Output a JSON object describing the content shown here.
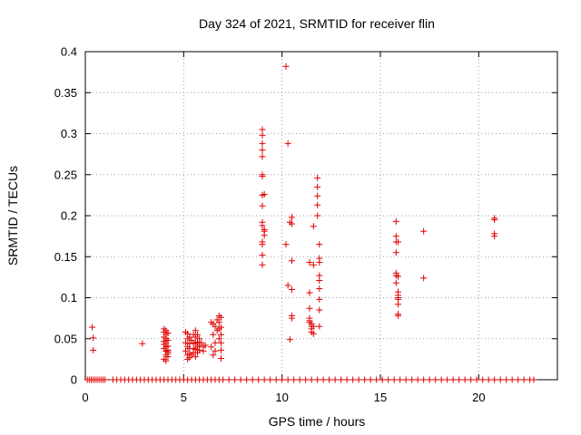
{
  "chart_data": {
    "type": "scatter",
    "title": "Day 324 of 2021, SRMTID for receiver flin",
    "xlabel": "GPS time / hours",
    "ylabel": "SRMTID / TECUs",
    "xlim": [
      0,
      24
    ],
    "ylim": [
      0,
      0.4
    ],
    "xticks": [
      "0",
      "5",
      "10",
      "15",
      "20"
    ],
    "yticks": [
      "0",
      "0.05",
      "0.1",
      "0.15",
      "0.2",
      "0.25",
      "0.3",
      "0.35",
      "0.4"
    ],
    "grid": true,
    "marker": "+",
    "color": "#e00000",
    "series": [
      {
        "x": [
          0.1,
          0.2,
          0.3,
          0.4,
          0.5,
          0.6,
          0.7,
          0.8,
          0.9,
          1.0,
          1.4,
          1.6,
          1.8,
          2.0,
          2.2,
          2.4,
          2.6,
          2.8,
          3.0,
          3.2,
          3.4,
          3.6,
          3.8,
          4.0,
          4.2,
          4.4,
          4.6,
          4.8,
          5.0,
          5.2,
          5.4,
          5.6,
          5.8,
          6.0,
          6.2,
          6.4,
          6.6,
          6.8,
          7.0,
          7.3,
          7.6,
          7.9,
          8.2,
          8.5,
          8.8,
          9.1,
          9.4,
          9.7,
          10.0,
          10.3,
          10.6,
          10.9,
          11.2,
          11.5,
          11.8,
          12.1,
          12.4,
          12.7,
          13.0,
          13.3,
          13.6,
          13.9,
          14.2,
          14.5,
          14.8,
          15.1,
          15.4,
          15.7,
          16.0,
          16.3,
          16.6,
          16.9,
          17.2,
          17.5,
          17.8,
          18.1,
          18.4,
          18.7,
          19.0,
          19.3,
          19.6,
          19.9,
          20.2,
          20.5,
          20.8,
          21.1,
          21.4,
          21.7,
          22.0,
          22.3,
          22.6,
          22.8,
          0.35,
          0.4,
          0.4,
          2.9,
          4.0,
          4.0,
          4.0,
          4.0,
          4.0,
          4.0,
          4.1,
          4.1,
          4.1,
          4.1,
          4.1,
          4.1,
          4.1,
          4.2,
          4.2,
          4.2,
          4.2,
          4.2,
          4.2,
          4.0,
          4.1,
          4.2,
          5.1,
          5.1,
          5.1,
          5.2,
          5.2,
          5.2,
          5.2,
          5.2,
          5.3,
          5.3,
          5.3,
          5.3,
          5.3,
          5.4,
          5.4,
          5.5,
          5.5,
          5.5,
          5.5,
          5.6,
          5.6,
          5.6,
          5.6,
          5.6,
          5.7,
          5.7,
          5.7,
          5.7,
          5.8,
          5.8,
          5.8,
          5.9,
          6.0,
          6.0,
          6.1,
          6.4,
          6.4,
          6.5,
          6.5,
          6.5,
          6.6,
          6.6,
          6.6,
          6.7,
          6.7,
          6.8,
          6.8,
          6.8,
          6.8,
          6.9,
          6.9,
          6.9,
          6.9,
          6.9,
          6.9,
          9.0,
          9.0,
          9.0,
          9.0,
          9.0,
          9.0,
          9.0,
          9.0,
          9.0,
          9.0,
          9.1,
          9.1,
          9.0,
          9.0,
          9.0,
          9.0,
          9.1,
          9.1,
          9.0,
          10.2,
          10.3,
          10.2,
          10.3,
          10.5,
          10.5,
          10.5,
          10.5,
          10.5,
          10.5,
          10.4,
          10.4,
          11.4,
          11.4,
          11.4,
          11.4,
          11.4,
          11.4,
          11.5,
          11.5,
          11.5,
          11.5,
          11.6,
          11.6,
          11.6,
          11.6,
          11.8,
          11.8,
          11.8,
          11.8,
          11.8,
          11.9,
          11.9,
          11.9,
          11.9,
          11.9,
          11.9,
          11.9,
          11.9,
          11.9,
          15.8,
          15.8,
          15.8,
          15.8,
          15.8,
          15.8,
          15.8,
          15.9,
          15.9,
          15.9,
          15.9,
          15.9,
          15.9,
          15.9,
          15.9,
          15.9,
          17.2,
          17.2,
          20.8,
          20.8,
          20.8,
          20.8
        ],
        "y": [
          0,
          0,
          0,
          0,
          0,
          0,
          0,
          0,
          0,
          0,
          0,
          0,
          0,
          0,
          0,
          0,
          0,
          0,
          0,
          0,
          0,
          0,
          0,
          0,
          0,
          0,
          0,
          0,
          0,
          0,
          0,
          0,
          0,
          0,
          0,
          0,
          0,
          0,
          0,
          0,
          0,
          0,
          0,
          0,
          0,
          0,
          0,
          0,
          0,
          0,
          0,
          0,
          0,
          0,
          0,
          0,
          0,
          0,
          0,
          0,
          0,
          0,
          0,
          0,
          0,
          0,
          0,
          0,
          0,
          0,
          0,
          0,
          0,
          0,
          0,
          0,
          0,
          0,
          0,
          0,
          0,
          0,
          0,
          0,
          0,
          0,
          0,
          0,
          0,
          0,
          0,
          0,
          0.064,
          0.051,
          0.036,
          0.044,
          0.062,
          0.058,
          0.052,
          0.047,
          0.043,
          0.038,
          0.06,
          0.055,
          0.05,
          0.045,
          0.04,
          0.035,
          0.03,
          0.057,
          0.048,
          0.041,
          0.036,
          0.032,
          0.028,
          0.025,
          0.023,
          0.034,
          0.058,
          0.045,
          0.035,
          0.056,
          0.05,
          0.04,
          0.03,
          0.025,
          0.052,
          0.044,
          0.038,
          0.032,
          0.027,
          0.048,
          0.03,
          0.055,
          0.045,
          0.038,
          0.033,
          0.06,
          0.052,
          0.044,
          0.037,
          0.028,
          0.055,
          0.046,
          0.04,
          0.033,
          0.05,
          0.042,
          0.036,
          0.045,
          0.04,
          0.035,
          0.042,
          0.07,
          0.04,
          0.068,
          0.055,
          0.03,
          0.065,
          0.045,
          0.035,
          0.073,
          0.06,
          0.078,
          0.07,
          0.062,
          0.05,
          0.076,
          0.064,
          0.055,
          0.045,
          0.036,
          0.026,
          0.305,
          0.298,
          0.288,
          0.28,
          0.272,
          0.25,
          0.248,
          0.225,
          0.212,
          0.192,
          0.181,
          0.176,
          0.168,
          0.165,
          0.152,
          0.14,
          0.183,
          0.226,
          0.188,
          0.382,
          0.288,
          0.165,
          0.115,
          0.198,
          0.19,
          0.145,
          0.11,
          0.078,
          0.075,
          0.049,
          0.192,
          0.143,
          0.106,
          0.087,
          0.075,
          0.072,
          0.07,
          0.068,
          0.065,
          0.062,
          0.058,
          0.065,
          0.056,
          0.14,
          0.187,
          0.246,
          0.235,
          0.224,
          0.213,
          0.2,
          0.165,
          0.148,
          0.143,
          0.127,
          0.121,
          0.111,
          0.098,
          0.085,
          0.065,
          0.193,
          0.175,
          0.168,
          0.155,
          0.13,
          0.127,
          0.118,
          0.107,
          0.103,
          0.1,
          0.098,
          0.092,
          0.08,
          0.078,
          0.126,
          0.168,
          0.181,
          0.124,
          0.197,
          0.195,
          0.178,
          0.175
        ]
      }
    ]
  }
}
